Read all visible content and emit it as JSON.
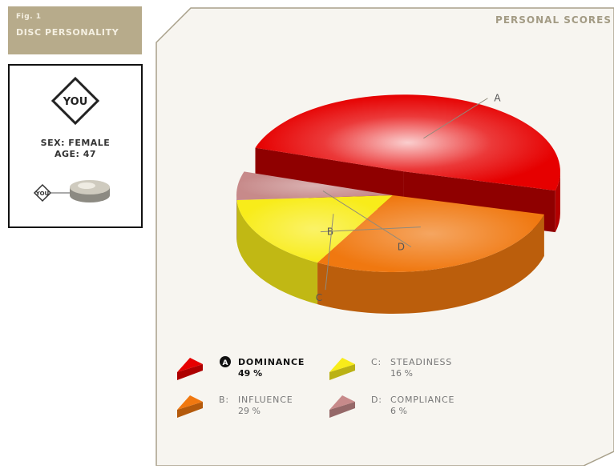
{
  "figure": {
    "number": "Fig. 1",
    "title": "DISC PERSONALITY"
  },
  "profile": {
    "badge": "YOU",
    "sex": "SEX: FEMALE",
    "age": "AGE: 47",
    "mini_badge": "YOU"
  },
  "panel": {
    "title": "PERSONAL SCORES"
  },
  "colors": {
    "tab_bg": "#b7ab8b",
    "panel_bg": "#f7f5f0",
    "panel_border": "#a8a08a"
  },
  "chart_data": {
    "type": "pie",
    "title": "PERSONAL SCORES",
    "slices": [
      {
        "key": "A",
        "name": "DOMINANCE",
        "value": 49,
        "label": "49 %",
        "color": "#e60000",
        "exploded": true,
        "highlight": true
      },
      {
        "key": "B",
        "name": "INFLUENCE",
        "value": 29,
        "label": "29 %",
        "color": "#f07810"
      },
      {
        "key": "C",
        "name": "STEADINESS",
        "value": 16,
        "label": "16 %",
        "color": "#f8ec1a"
      },
      {
        "key": "D",
        "name": "COMPLIANCE",
        "value": 6,
        "label": "6 %",
        "color": "#c78a8a"
      }
    ]
  }
}
